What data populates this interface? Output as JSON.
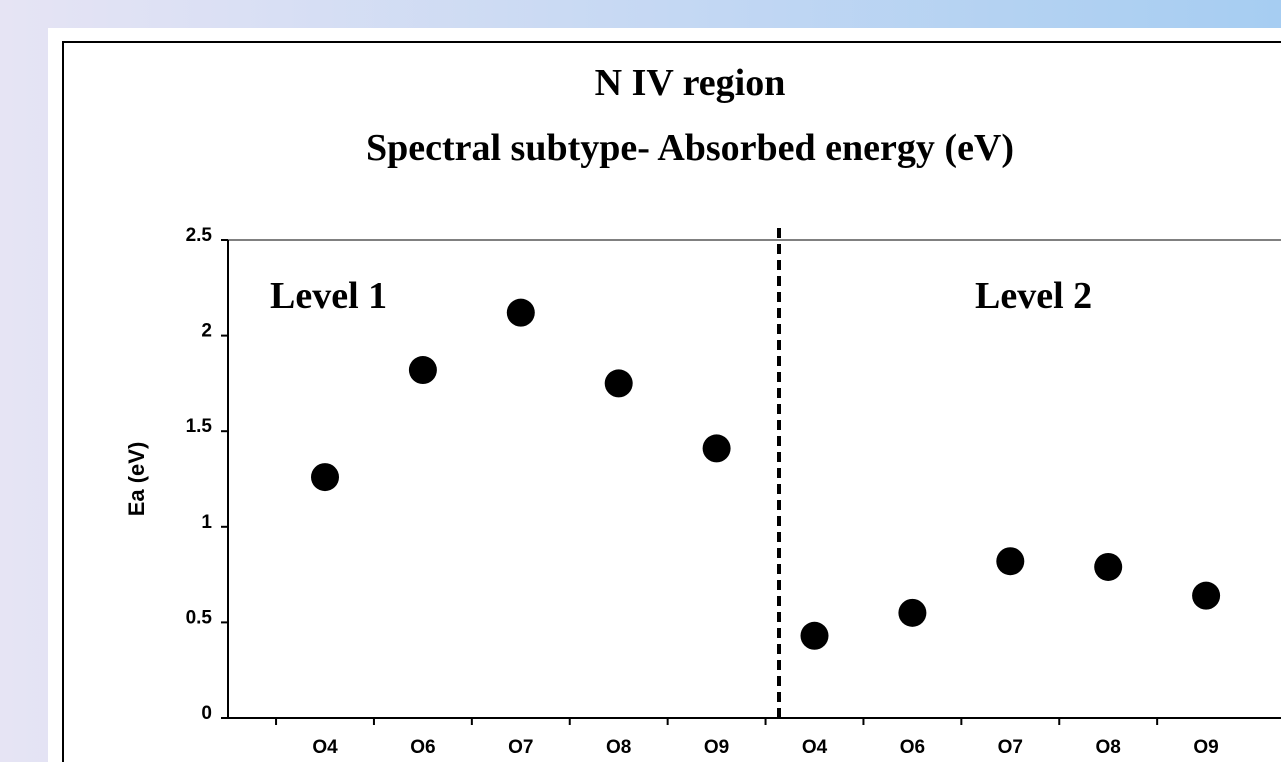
{
  "chart_data": {
    "type": "scatter",
    "title": "N IV region",
    "subtitle": "Spectral subtype- Absorbed energy (eV)",
    "y_label": "Ea (eV)",
    "annotations": [
      "Level 1",
      "Level 2"
    ],
    "categories": [
      "O4",
      "O6",
      "O7",
      "O8",
      "O9",
      "O4",
      "O6",
      "O7",
      "O8",
      "O9"
    ],
    "values": [
      1.26,
      1.82,
      2.12,
      1.75,
      1.41,
      0.43,
      0.55,
      0.82,
      0.79,
      0.64
    ],
    "color": "#000000",
    "ylim": [
      0,
      2.5
    ],
    "yticks": [
      0,
      0.5,
      1,
      1.5,
      2,
      2.5
    ]
  }
}
